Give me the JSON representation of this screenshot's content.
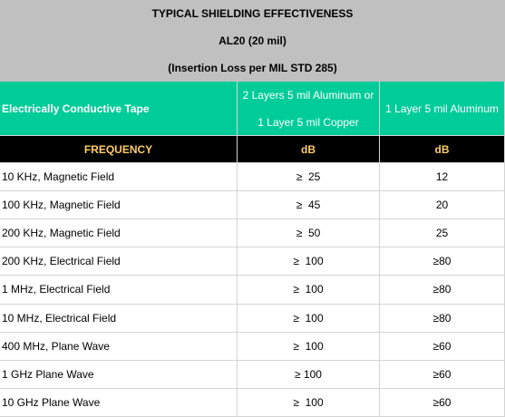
{
  "header": {
    "title": "TYPICAL SHIELDING EFFECTIVENESS",
    "subtitle": "AL20 (20 mil)",
    "note": "(Insertion Loss per MIL STD 285)"
  },
  "table": {
    "column_headers": [
      [
        "Electrically Conductive Tape"
      ],
      [
        "2 Layers 5 mil Aluminum or",
        "1 Layer 5 mil Copper"
      ],
      [
        "1 Layer 5 mil Aluminum"
      ]
    ],
    "units": [
      "FREQUENCY",
      "dB",
      "dB"
    ],
    "rows": [
      [
        "10 KHz, Magnetic Field",
        "≥  25",
        "12"
      ],
      [
        "100 KHz, Magnetic Field",
        "≥  45",
        "20"
      ],
      [
        "200 KHz, Magnetic Field",
        "≥  50",
        "25"
      ],
      [
        "200 KHz, Electrical Field",
        "≥  100",
        "≥80"
      ],
      [
        "1 MHz, Electrical Field",
        "≥  100",
        "≥80"
      ],
      [
        "10 MHz, Electrical Field",
        "≥  100",
        "≥80"
      ],
      [
        "400 MHz, Plane Wave",
        "≥  100",
        "≥60"
      ],
      [
        "1 GHz Plane Wave",
        "≥ 100",
        "≥60"
      ],
      [
        "10 GHz Plane Wave",
        "≥  100",
        "≥60"
      ]
    ]
  }
}
